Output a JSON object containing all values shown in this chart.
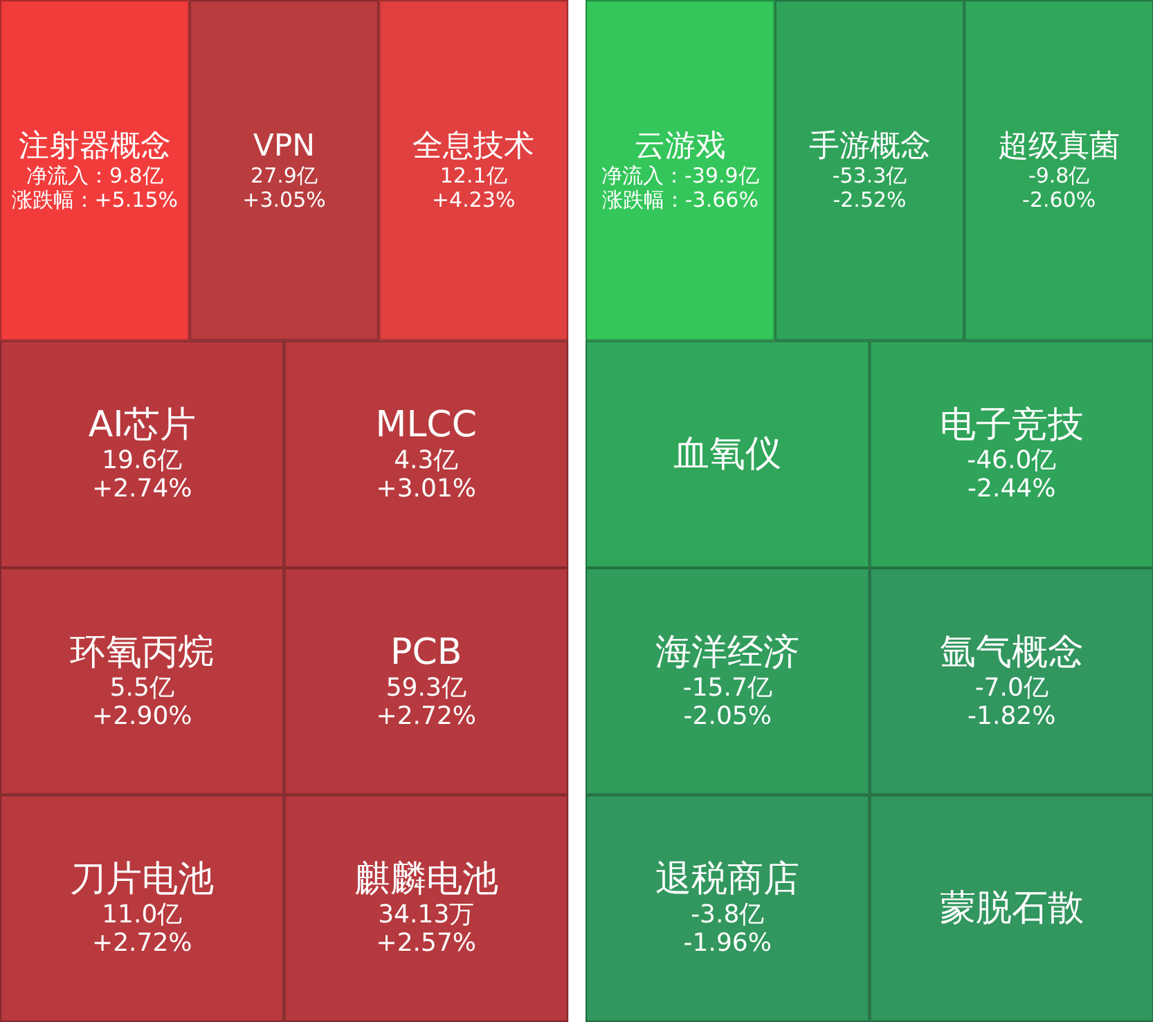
{
  "chart_data": [
    {
      "type": "other",
      "categories": [
        "注射器概念",
        "VPN",
        "全息技术",
        "AI芯片",
        "MLCC",
        "环氧丙烷",
        "刀片电池",
        "PCB",
        "麒麟电池"
      ],
      "series": [
        {
          "colors": [
            "#f23c3c",
            "#b93c3e",
            "#e04040",
            "#b7393e",
            "#b83a3e",
            "#b83a3e",
            "#b83a3e",
            "#b5393e",
            "#b5393e"
          ],
          "values": [
            9.8,
            27.9,
            12.1,
            19.6,
            4.3,
            5.5,
            11.0,
            59.3,
            34.13
          ],
          "value_labels": [
            "净流入：9.8亿",
            "27.9亿",
            "12.1亿",
            "19.6亿",
            "4.3亿",
            "5.5亿",
            "11.0亿",
            "59.3亿",
            "34.13万"
          ]
        },
        {
          "values": [
            5.15,
            3.05,
            4.23,
            2.74,
            3.01,
            2.9,
            2.72,
            2.72,
            2.57
          ],
          "value_labels": [
            "涨跌幅：+5.15%",
            "+3.05%",
            "+4.23%",
            "+2.74%",
            "+3.01%",
            "+2.90%",
            "+2.72%",
            "+2.72%",
            "+2.57%"
          ]
        }
      ]
    },
    {
      "type": "other",
      "categories": [
        "云游戏",
        "手游概念",
        "超级真菌",
        "血氧仪",
        "电子竞技",
        "海洋经济",
        "退税商店",
        "氩气概念",
        "蒙脱石散"
      ],
      "series": [
        {
          "colors": [
            "#34c65a",
            "#30a35a",
            "#30a65a",
            "#30a65a",
            "#2fa45a",
            "#319c5c",
            "#32975e",
            "#32965f",
            "#32965f"
          ],
          "values": [
            -39.9,
            -53.3,
            -9.8,
            null,
            -46.0,
            -15.7,
            -3.8,
            -7.0,
            null
          ],
          "value_labels": [
            "净流入：-39.9亿",
            "-53.3亿",
            "-9.8亿",
            null,
            "-46.0亿",
            "-15.7亿",
            "-3.8亿",
            "-7.0亿",
            null
          ]
        },
        {
          "values": [
            -3.66,
            -2.52,
            -2.6,
            null,
            -2.44,
            -2.05,
            -1.96,
            -1.82,
            null
          ],
          "value_labels": [
            "涨跌幅：-3.66%",
            "-2.52%",
            "-2.60%",
            null,
            "-2.44%",
            "-2.05%",
            "-1.96%",
            "-1.82%",
            null
          ]
        }
      ]
    }
  ]
}
